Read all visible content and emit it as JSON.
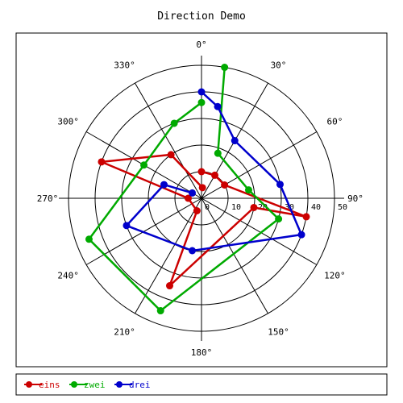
{
  "chart_data": {
    "type": "polar-line",
    "title": "Direction Demo",
    "angular_ticks": [
      "0°",
      "30°",
      "60°",
      "90°",
      "120°",
      "150°",
      "180°",
      "210°",
      "240°",
      "270°",
      "300°",
      "330°"
    ],
    "radial_ticks": [
      "0",
      "10",
      "20",
      "30",
      "40",
      "50"
    ],
    "radial_range": [
      0,
      50
    ],
    "direction": "clockwise",
    "zero_at": "top",
    "legend_position": "bottom",
    "series": [
      {
        "name": "eins",
        "color": "#cc0000",
        "points": [
          {
            "angle": 0,
            "r": 10
          },
          {
            "angle": 30,
            "r": 10
          },
          {
            "angle": 60,
            "r": 10
          },
          {
            "angle": 100,
            "r": 40
          },
          {
            "angle": 100,
            "r": 20
          },
          {
            "angle": 200,
            "r": 35
          },
          {
            "angle": 200,
            "r": 5
          },
          {
            "angle": 270,
            "r": 5
          },
          {
            "angle": 290,
            "r": 40
          },
          {
            "angle": 325,
            "r": 20
          },
          {
            "angle": 5,
            "r": 4
          }
        ]
      },
      {
        "name": "zwei",
        "color": "#00aa00",
        "points": [
          {
            "angle": 10,
            "r": 50
          },
          {
            "angle": 20,
            "r": 18
          },
          {
            "angle": 80,
            "r": 18
          },
          {
            "angle": 105,
            "r": 30
          },
          {
            "angle": 200,
            "r": 45
          },
          {
            "angle": 250,
            "r": 45
          },
          {
            "angle": 300,
            "r": 25
          },
          {
            "angle": 340,
            "r": 30
          },
          {
            "angle": 0,
            "r": 36
          }
        ]
      },
      {
        "name": "drei",
        "color": "#0000cc",
        "points": [
          {
            "angle": 0,
            "r": 40
          },
          {
            "angle": 10,
            "r": 35
          },
          {
            "angle": 30,
            "r": 25
          },
          {
            "angle": 80,
            "r": 30
          },
          {
            "angle": 110,
            "r": 40
          },
          {
            "angle": 190,
            "r": 20
          },
          {
            "angle": 250,
            "r": 30
          },
          {
            "angle": 290,
            "r": 15
          },
          {
            "angle": 300,
            "r": 4
          }
        ]
      }
    ]
  }
}
